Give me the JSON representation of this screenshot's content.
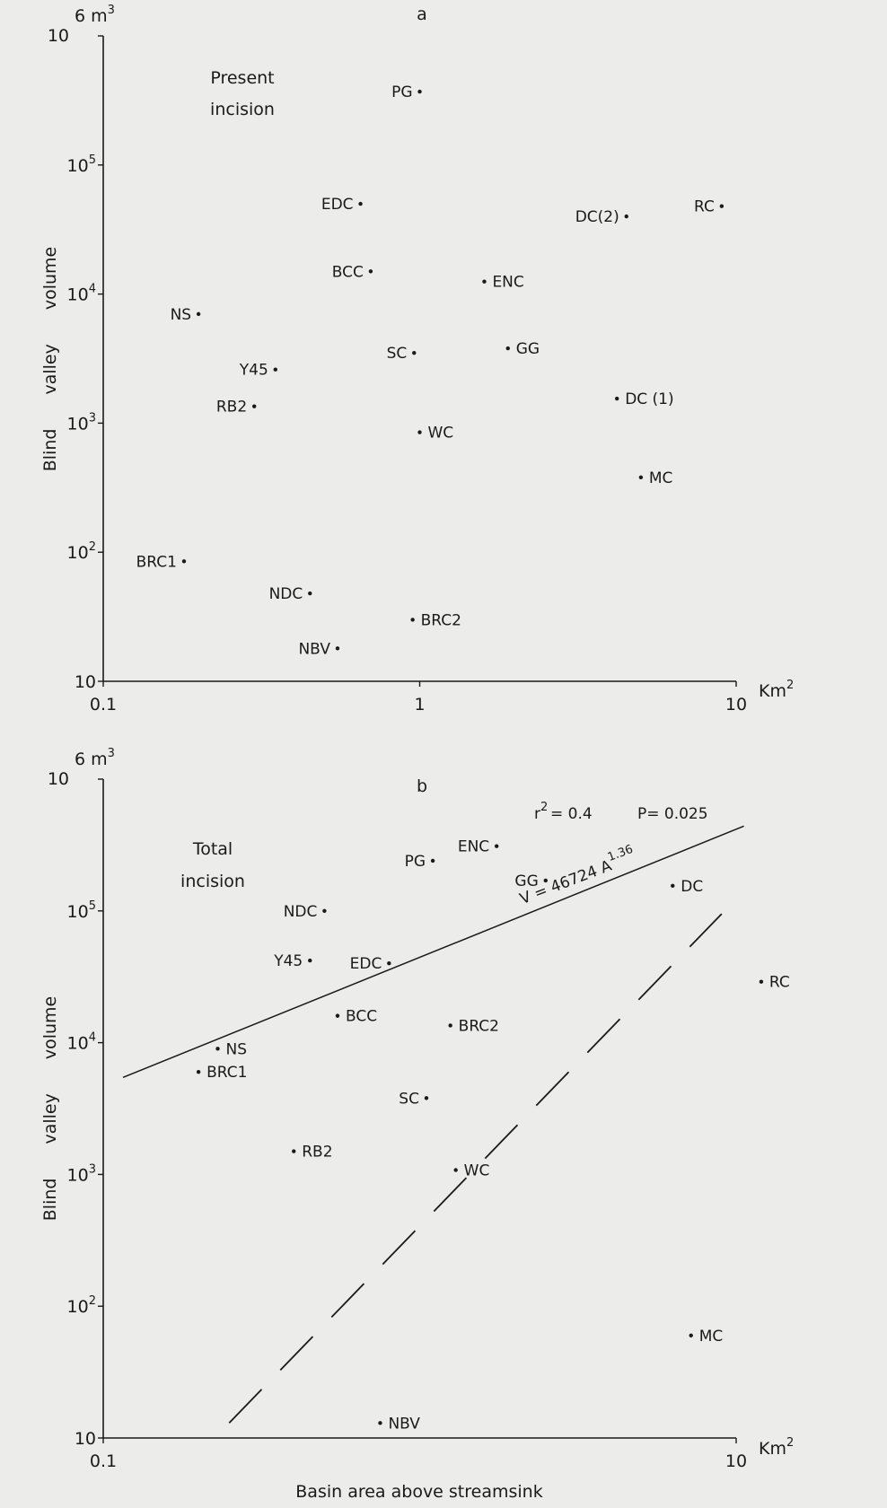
{
  "chart_data": [
    {
      "type": "scatter",
      "panel_label": "a",
      "title_lines": [
        "Present",
        "incision"
      ],
      "ylabel_words": [
        "Blind",
        "valley",
        "volume"
      ],
      "y_unit": "m",
      "y_unit_exp": "3",
      "x_unit": "Km",
      "x_unit_exp": "2",
      "xscale": "log",
      "yscale": "log",
      "xlim": [
        0.1,
        10
      ],
      "ylim": [
        10,
        1000000
      ],
      "x_ticks": [
        {
          "v": 0.1,
          "label": "0.1"
        },
        {
          "v": 1,
          "label": "1"
        },
        {
          "v": 10,
          "label": "10"
        }
      ],
      "y_ticks": [
        {
          "v": 10,
          "base": "10",
          "exp": ""
        },
        {
          "v": 100,
          "base": "10",
          "exp": "2"
        },
        {
          "v": 1000,
          "base": "10",
          "exp": "3"
        },
        {
          "v": 10000,
          "base": "10",
          "exp": "4"
        },
        {
          "v": 100000,
          "base": "10",
          "exp": "5"
        },
        {
          "v": 1000000,
          "base": "10",
          "exp": "6"
        }
      ],
      "points": [
        {
          "label": "PG",
          "x": 1.0,
          "y": 370000,
          "pos": "left"
        },
        {
          "label": "EDC",
          "x": 0.65,
          "y": 50000,
          "pos": "left"
        },
        {
          "label": "DC(2)",
          "x": 4.5,
          "y": 40000,
          "pos": "left"
        },
        {
          "label": "RC",
          "x": 9.0,
          "y": 48000,
          "pos": "left"
        },
        {
          "label": "BCC",
          "x": 0.7,
          "y": 15000,
          "pos": "left"
        },
        {
          "label": "ENC",
          "x": 1.6,
          "y": 12500,
          "pos": "right"
        },
        {
          "label": "NS",
          "x": 0.2,
          "y": 7000,
          "pos": "left"
        },
        {
          "label": "SC",
          "x": 0.96,
          "y": 3500,
          "pos": "left"
        },
        {
          "label": "GG",
          "x": 1.9,
          "y": 3800,
          "pos": "right"
        },
        {
          "label": "Y45",
          "x": 0.35,
          "y": 2600,
          "pos": "left"
        },
        {
          "label": "RB2",
          "x": 0.3,
          "y": 1350,
          "pos": "left"
        },
        {
          "label": "DC (1)",
          "x": 4.2,
          "y": 1550,
          "pos": "right"
        },
        {
          "label": "WC",
          "x": 1.0,
          "y": 850,
          "pos": "right"
        },
        {
          "label": "MC",
          "x": 5.0,
          "y": 380,
          "pos": "right"
        },
        {
          "label": "BRC1",
          "x": 0.18,
          "y": 85,
          "pos": "left"
        },
        {
          "label": "NDC",
          "x": 0.45,
          "y": 48,
          "pos": "left"
        },
        {
          "label": "BRC2",
          "x": 0.95,
          "y": 30,
          "pos": "right"
        },
        {
          "label": "NBV",
          "x": 0.55,
          "y": 18,
          "pos": "left"
        }
      ]
    },
    {
      "type": "scatter",
      "panel_label": "b",
      "title_lines": [
        "Total",
        "incision"
      ],
      "ylabel_words": [
        "Blind",
        "valley",
        "volume"
      ],
      "xlabel": "Basin area above streamsink",
      "y_unit": "m",
      "y_unit_exp": "3",
      "x_unit": "Km",
      "x_unit_exp": "2",
      "xscale": "log",
      "yscale": "log",
      "xlim": [
        0.1,
        10
      ],
      "ylim": [
        10,
        1000000
      ],
      "x_ticks": [
        {
          "v": 0.1,
          "label": "0.1"
        },
        {
          "v": 10,
          "label": "10"
        }
      ],
      "y_ticks": [
        {
          "v": 10,
          "base": "10",
          "exp": ""
        },
        {
          "v": 100,
          "base": "10",
          "exp": "2"
        },
        {
          "v": 1000,
          "base": "10",
          "exp": "3"
        },
        {
          "v": 10000,
          "base": "10",
          "exp": "4"
        },
        {
          "v": 100000,
          "base": "10",
          "exp": "5"
        },
        {
          "v": 1000000,
          "base": "10",
          "exp": "6"
        }
      ],
      "stats": {
        "r2_label": "r",
        "r2_exp": "2",
        "r2_value": "= 0.4",
        "p_text": "P= 0.025"
      },
      "regression": {
        "label": "V = 46724 A",
        "exponent": "1.36",
        "x_range": [
          0.1,
          11
        ],
        "y_range": [
          5800,
          440000
        ]
      },
      "dashed_line": {
        "x_range": [
          0.25,
          9.0
        ],
        "y_range": [
          13,
          95000
        ]
      },
      "points": [
        {
          "label": "ENC",
          "x": 1.75,
          "y": 310000,
          "pos": "left"
        },
        {
          "label": "PG",
          "x": 1.1,
          "y": 240000,
          "pos": "left"
        },
        {
          "label": "GG",
          "x": 2.5,
          "y": 170000,
          "pos": "left"
        },
        {
          "label": "DC",
          "x": 6.3,
          "y": 155000,
          "pos": "right"
        },
        {
          "label": "NDC",
          "x": 0.5,
          "y": 100000,
          "pos": "left"
        },
        {
          "label": "Y45",
          "x": 0.45,
          "y": 42000,
          "pos": "left"
        },
        {
          "label": "EDC",
          "x": 0.8,
          "y": 40000,
          "pos": "left"
        },
        {
          "label": "RC",
          "x": 12,
          "y": 29000,
          "pos": "right"
        },
        {
          "label": "BCC",
          "x": 0.55,
          "y": 16000,
          "pos": "right"
        },
        {
          "label": "BRC2",
          "x": 1.25,
          "y": 13500,
          "pos": "right"
        },
        {
          "label": "NS",
          "x": 0.23,
          "y": 9000,
          "pos": "right"
        },
        {
          "label": "BRC1",
          "x": 0.2,
          "y": 6000,
          "pos": "right"
        },
        {
          "label": "SC",
          "x": 1.05,
          "y": 3800,
          "pos": "left"
        },
        {
          "label": "RB2",
          "x": 0.4,
          "y": 1500,
          "pos": "right"
        },
        {
          "label": "WC",
          "x": 1.3,
          "y": 1080,
          "pos": "right"
        },
        {
          "label": "MC",
          "x": 7.2,
          "y": 60,
          "pos": "right"
        },
        {
          "label": "NBV",
          "x": 0.75,
          "y": 13,
          "pos": "right"
        }
      ]
    }
  ]
}
